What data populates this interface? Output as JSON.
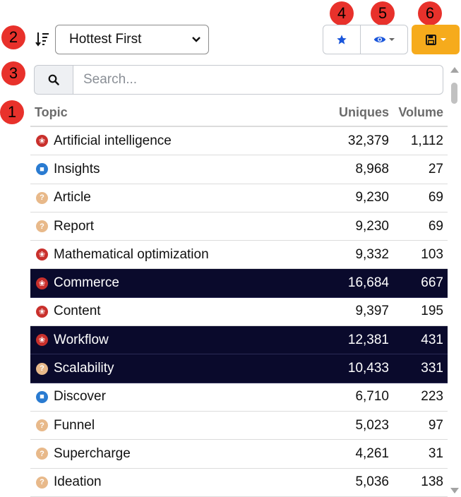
{
  "annotations": [
    "1",
    "2",
    "3",
    "4",
    "5",
    "6"
  ],
  "sort_select": {
    "value": "Hottest First"
  },
  "search": {
    "placeholder": "Search..."
  },
  "table": {
    "columns": [
      "Topic",
      "Uniques",
      "Volume"
    ],
    "rows": [
      {
        "icon": "lightbulb-icon",
        "icon_color": "#c9302c",
        "topic": "Artificial intelligence",
        "uniques": "32,379",
        "volume": "1,112",
        "selected": false
      },
      {
        "icon": "cart-icon",
        "icon_color": "#2a7bd1",
        "topic": "Insights",
        "uniques": "8,968",
        "volume": "27",
        "selected": false
      },
      {
        "icon": "question-icon",
        "icon_color": "#e8b98a",
        "topic": "Article",
        "uniques": "9,230",
        "volume": "69",
        "selected": false
      },
      {
        "icon": "question-icon",
        "icon_color": "#e8b98a",
        "topic": "Report",
        "uniques": "9,230",
        "volume": "69",
        "selected": false
      },
      {
        "icon": "lightbulb-icon",
        "icon_color": "#c9302c",
        "topic": "Mathematical optimization",
        "uniques": "9,332",
        "volume": "103",
        "selected": false
      },
      {
        "icon": "lightbulb-icon",
        "icon_color": "#c9302c",
        "topic": "Commerce",
        "uniques": "16,684",
        "volume": "667",
        "selected": true
      },
      {
        "icon": "lightbulb-icon",
        "icon_color": "#c9302c",
        "topic": "Content",
        "uniques": "9,397",
        "volume": "195",
        "selected": false
      },
      {
        "icon": "lightbulb-icon",
        "icon_color": "#c9302c",
        "topic": "Workflow",
        "uniques": "12,381",
        "volume": "431",
        "selected": true
      },
      {
        "icon": "question-icon",
        "icon_color": "#e8b98a",
        "topic": "Scalability",
        "uniques": "10,433",
        "volume": "331",
        "selected": true
      },
      {
        "icon": "cart-icon",
        "icon_color": "#2a7bd1",
        "topic": "Discover",
        "uniques": "6,710",
        "volume": "223",
        "selected": false
      },
      {
        "icon": "question-icon",
        "icon_color": "#e8b98a",
        "topic": "Funnel",
        "uniques": "5,023",
        "volume": "97",
        "selected": false
      },
      {
        "icon": "question-icon",
        "icon_color": "#e8b98a",
        "topic": "Supercharge",
        "uniques": "4,261",
        "volume": "31",
        "selected": false
      },
      {
        "icon": "question-icon",
        "icon_color": "#e8b98a",
        "topic": "Ideation",
        "uniques": "5,036",
        "volume": "138",
        "selected": false
      }
    ]
  },
  "colors": {
    "annotation_red": "#e8312b",
    "selected_row": "#0a0a2c",
    "save_button": "#f6ab1c",
    "star_blue": "#1a56db"
  }
}
